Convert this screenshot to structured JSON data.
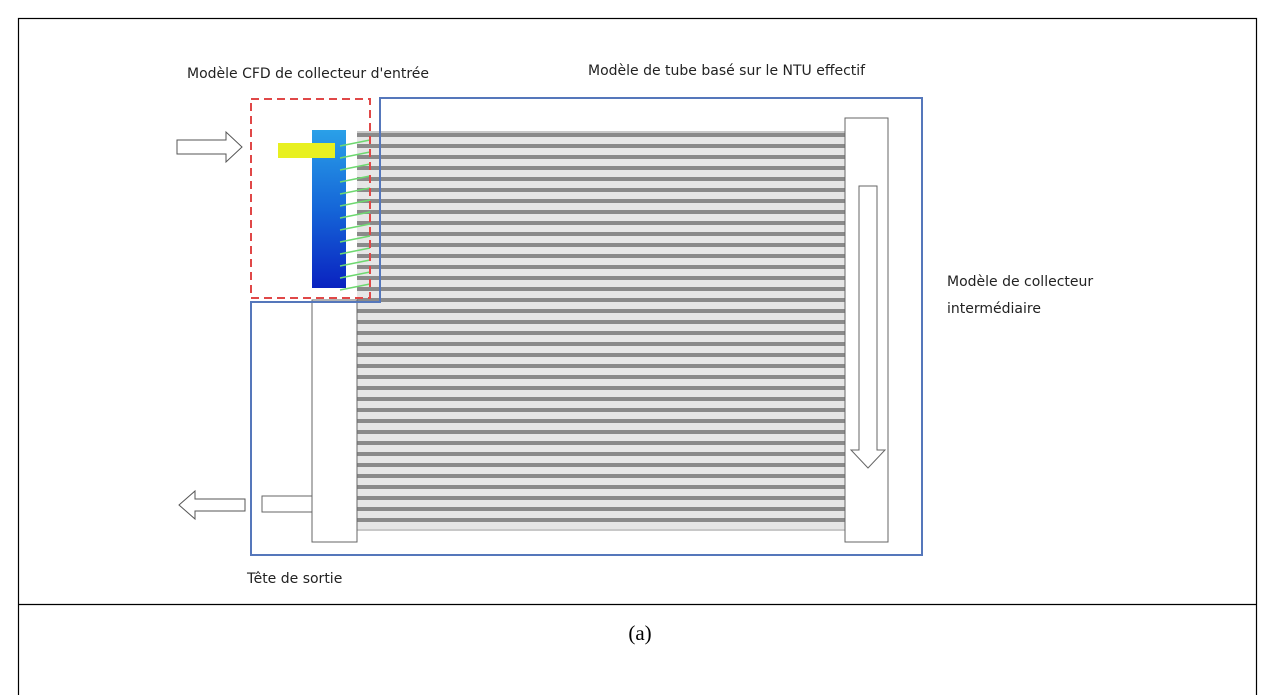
{
  "labels": {
    "inlet_cfd": "Modèle CFD de collecteur d'entrée",
    "tube_model": "Modèle de tube basé sur le NTU effectif",
    "intermediate": [
      "Modèle de collecteur",
      "intermédiaire"
    ],
    "outlet": "Tête de sortie"
  },
  "caption": "(a)"
}
